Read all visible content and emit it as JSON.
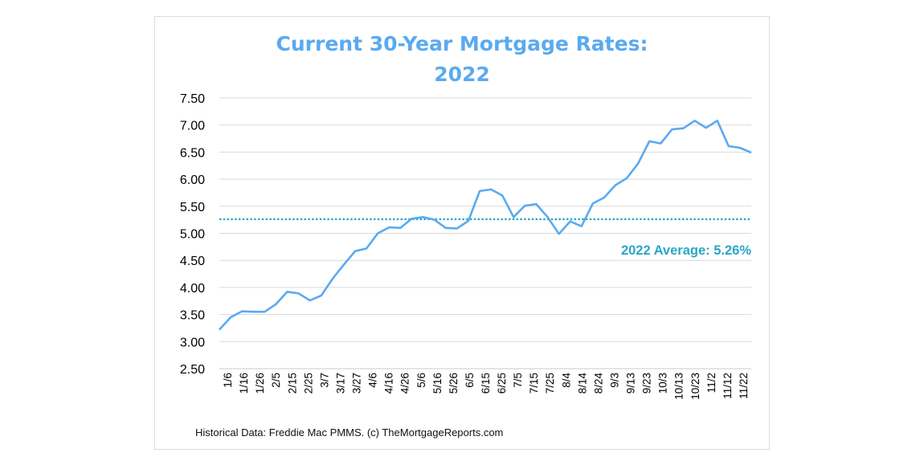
{
  "chart_data": {
    "type": "line",
    "title": [
      "Current 30-Year Mortgage Rates:",
      "2022"
    ],
    "xlabel": "",
    "ylabel": "",
    "ylim": [
      2.5,
      7.5
    ],
    "yticks": [
      "2.50",
      "3.00",
      "3.50",
      "4.00",
      "4.50",
      "5.00",
      "5.50",
      "6.00",
      "6.50",
      "7.00",
      "7.50"
    ],
    "xtick_labels": [
      "1/6",
      "1/16",
      "1/26",
      "2/5",
      "2/15",
      "2/25",
      "3/7",
      "3/17",
      "3/27",
      "4/6",
      "4/16",
      "4/26",
      "5/6",
      "5/16",
      "5/26",
      "6/5",
      "6/15",
      "6/25",
      "7/5",
      "7/15",
      "7/25",
      "8/4",
      "8/14",
      "8/24",
      "9/3",
      "9/13",
      "9/23",
      "10/3",
      "10/13",
      "10/23",
      "11/2",
      "11/12",
      "11/22"
    ],
    "grid": "horizontal",
    "series": [
      {
        "color": "#5aaaf0",
        "x": [
          "1/6",
          "1/13",
          "1/20",
          "1/27",
          "2/3",
          "2/10",
          "2/17",
          "2/24",
          "3/3",
          "3/10",
          "3/17",
          "3/24",
          "3/31",
          "4/7",
          "4/14",
          "4/21",
          "4/28",
          "5/5",
          "5/12",
          "5/19",
          "5/26",
          "6/2",
          "6/9",
          "6/16",
          "6/23",
          "6/30",
          "7/7",
          "7/14",
          "7/21",
          "7/28",
          "8/4",
          "8/11",
          "8/18",
          "8/25",
          "9/1",
          "9/8",
          "9/15",
          "9/22",
          "9/29",
          "10/6",
          "10/13",
          "10/20",
          "10/27",
          "11/3",
          "11/10",
          "11/17",
          "11/23",
          "12/1"
        ],
        "values": [
          3.22,
          3.45,
          3.56,
          3.55,
          3.55,
          3.69,
          3.92,
          3.89,
          3.76,
          3.85,
          4.16,
          4.42,
          4.67,
          4.72,
          5.0,
          5.11,
          5.1,
          5.27,
          5.3,
          5.25,
          5.1,
          5.09,
          5.23,
          5.78,
          5.81,
          5.7,
          5.3,
          5.51,
          5.54,
          5.3,
          4.99,
          5.22,
          5.13,
          5.55,
          5.66,
          5.89,
          6.02,
          6.29,
          6.7,
          6.66,
          6.92,
          6.94,
          7.08,
          6.95,
          7.08,
          6.61,
          6.58,
          6.49
        ]
      }
    ],
    "average": {
      "value": 5.26,
      "label": "2022 Average: 5.26%",
      "color": "#2aa6c6"
    }
  },
  "source": "Historical Data: Freddie Mac PMMS. (c) TheMortgageReports.com"
}
